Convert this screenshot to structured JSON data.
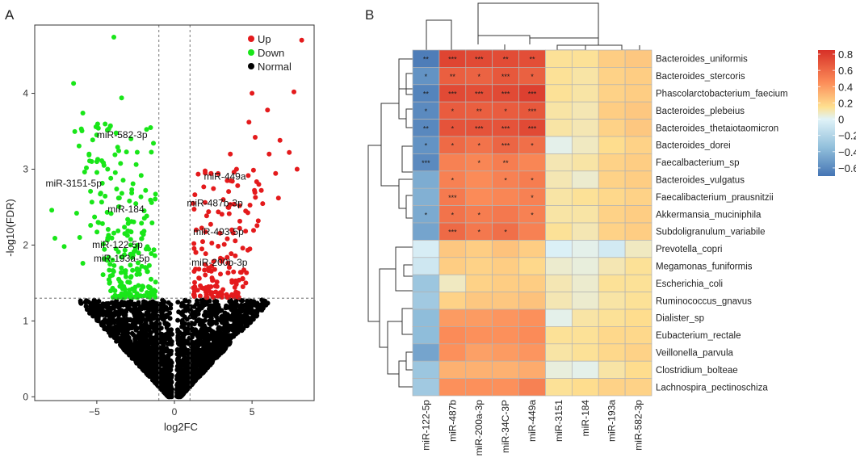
{
  "figure": {
    "panels": [
      "A",
      "B"
    ]
  },
  "chart_data": [
    {
      "type": "scatter",
      "panel": "A",
      "xlabel": "log2FC",
      "ylabel": "-log10(FDR)",
      "xlim": [
        -9,
        9
      ],
      "ylim": [
        -0.05,
        4.9
      ],
      "xticks": [
        -5,
        0,
        5
      ],
      "yticks": [
        0,
        1,
        2,
        3,
        4
      ],
      "thresholds": {
        "log2fc": [
          -1,
          1
        ],
        "neg_log10_fdr": 1.3
      },
      "legend": {
        "position": "top-right",
        "entries": [
          {
            "name": "Up",
            "color": "#e41a1c"
          },
          {
            "name": "Down",
            "color": "#19e619"
          },
          {
            "name": "Normal",
            "color": "#000000"
          }
        ]
      },
      "annotations": [
        {
          "text": "miR-582-3p",
          "x": -5.0,
          "y": 3.41
        },
        {
          "text": "miR-3151-5p",
          "x": -8.3,
          "y": 2.77
        },
        {
          "text": "miR-184",
          "x": -4.3,
          "y": 2.43
        },
        {
          "text": "miR-122-5p",
          "x": -5.3,
          "y": 1.96
        },
        {
          "text": "miR-193a-5p",
          "x": -5.2,
          "y": 1.78
        },
        {
          "text": "miR-449a",
          "x": 1.9,
          "y": 2.86
        },
        {
          "text": "miR-487b-3p",
          "x": 0.8,
          "y": 2.51
        },
        {
          "text": "miR-493-5p",
          "x": 1.2,
          "y": 2.13
        },
        {
          "text": "miR-200b-3p",
          "x": 1.1,
          "y": 1.73
        }
      ],
      "highlight_points": {
        "up": [
          [
            8.2,
            4.7
          ],
          [
            7.7,
            4.02
          ],
          [
            5.0,
            4.0
          ],
          [
            6.0,
            3.78
          ],
          [
            4.8,
            3.62
          ],
          [
            5.2,
            3.42
          ],
          [
            6.1,
            3.2
          ],
          [
            7.4,
            3.22
          ],
          [
            7.9,
            3.0
          ],
          [
            6.8,
            3.38
          ],
          [
            3.6,
            3.2
          ],
          [
            3.4,
            2.85
          ],
          [
            5.6,
            2.72
          ],
          [
            6.7,
            2.62
          ],
          [
            4.2,
            2.52
          ],
          [
            3.7,
            2.2
          ],
          [
            2.2,
            2.44
          ],
          [
            5.4,
            2.32
          ],
          [
            4.4,
            1.96
          ],
          [
            3.1,
            1.81
          ],
          [
            2.4,
            1.72
          ],
          [
            1.6,
            1.56
          ],
          [
            1.3,
            1.42
          ],
          [
            4.6,
            1.5
          ],
          [
            2.8,
            1.33
          ],
          [
            4.0,
            3.0
          ]
        ],
        "down": [
          [
            -3.9,
            4.74
          ],
          [
            -6.5,
            4.13
          ],
          [
            -5.9,
            3.74
          ],
          [
            -3.4,
            3.94
          ],
          [
            -4.9,
            3.54
          ],
          [
            -2.8,
            3.4
          ],
          [
            -7.9,
            2.46
          ],
          [
            -5.4,
            2.26
          ],
          [
            -7.7,
            2.09
          ],
          [
            -7.1,
            1.98
          ],
          [
            -5.9,
            1.76
          ],
          [
            -2.9,
            2.58
          ],
          [
            -4.1,
            2.88
          ],
          [
            -4.3,
            3.0
          ],
          [
            -2.1,
            1.72
          ],
          [
            -6.3,
            2.42
          ],
          [
            -3.2,
            1.42
          ],
          [
            -1.5,
            1.38
          ],
          [
            -5.0,
            3.1
          ],
          [
            -3.6,
            2.62
          ],
          [
            -2.5,
            1.96
          ],
          [
            -4.6,
            1.61
          ],
          [
            -6.1,
            2.1
          ],
          [
            -2.0,
            2.14
          ]
        ]
      }
    },
    {
      "type": "heatmap",
      "panel": "B",
      "columns": [
        "miR-122-5p",
        "miR-487b",
        "miR-200a-3p",
        "miR-34C-3P",
        "miR-449a",
        "miR-3151",
        "miR-184",
        "miR-193a",
        "miR-582-3p"
      ],
      "rows": [
        "Bacteroides_uniformis",
        "Bacteroides_stercoris",
        "Phascolarctobacterium_faecium",
        "Bacteroides_plebeius",
        "Bacteroides_thetaiotaomicron",
        "Bacteroides_dorei",
        "Faecalbacterium_sp",
        "Bacteroides_vulgatus",
        "Faecalibacterium_prausnitzii",
        "Akkermansia_muciniphila",
        "Subdoligranulum_variabile",
        "Prevotella_copri",
        "Megamonas_funiformis",
        "Escherichia_coli",
        "Ruminococcus_gnavus",
        "Dialister_sp",
        "Eubacterium_rectale",
        "Veillonella_parvula",
        "Clostridium_bolteae",
        "Lachnospira_pectinoschiza"
      ],
      "values": [
        [
          -0.66,
          0.76,
          0.74,
          0.73,
          0.72,
          0.14,
          0.14,
          0.22,
          0.24
        ],
        [
          -0.56,
          0.65,
          0.63,
          0.68,
          0.64,
          0.14,
          0.12,
          0.2,
          0.22
        ],
        [
          -0.63,
          0.74,
          0.72,
          0.74,
          0.78,
          0.14,
          0.12,
          0.2,
          0.22
        ],
        [
          -0.6,
          0.66,
          0.65,
          0.66,
          0.68,
          0.12,
          0.1,
          0.22,
          0.24
        ],
        [
          -0.61,
          0.7,
          0.7,
          0.7,
          0.74,
          0.12,
          0.1,
          0.2,
          0.24
        ],
        [
          -0.56,
          0.6,
          0.56,
          0.62,
          0.58,
          0.02,
          0.08,
          0.16,
          0.2
        ],
        [
          -0.6,
          0.5,
          0.48,
          0.52,
          0.48,
          0.1,
          0.12,
          0.2,
          0.22
        ],
        [
          -0.44,
          0.5,
          0.46,
          0.5,
          0.52,
          0.1,
          0.06,
          0.2,
          0.22
        ],
        [
          -0.42,
          0.53,
          0.46,
          0.48,
          0.5,
          0.12,
          0.14,
          0.18,
          0.2
        ],
        [
          -0.45,
          0.56,
          0.52,
          0.54,
          0.5,
          0.12,
          0.12,
          0.2,
          0.22
        ],
        [
          -0.48,
          0.6,
          0.54,
          0.58,
          0.5,
          0.14,
          0.1,
          0.2,
          0.22
        ],
        [
          -0.04,
          0.24,
          0.22,
          0.26,
          0.22,
          -0.02,
          0.02,
          -0.06,
          0.08
        ],
        [
          -0.08,
          0.22,
          0.2,
          0.22,
          0.18,
          0.06,
          0.04,
          0.1,
          0.14
        ],
        [
          -0.3,
          0.08,
          0.2,
          0.22,
          0.22,
          0.1,
          0.06,
          0.14,
          0.14
        ],
        [
          -0.28,
          0.2,
          0.24,
          0.24,
          0.26,
          0.1,
          0.06,
          0.12,
          0.14
        ],
        [
          -0.36,
          0.4,
          0.4,
          0.42,
          0.44,
          0.02,
          0.12,
          0.14,
          0.16
        ],
        [
          -0.36,
          0.46,
          0.44,
          0.44,
          0.46,
          0.14,
          0.14,
          0.18,
          0.18
        ],
        [
          -0.48,
          0.44,
          0.38,
          0.4,
          0.42,
          0.12,
          0.14,
          0.18,
          0.2
        ],
        [
          -0.3,
          0.32,
          0.32,
          0.32,
          0.34,
          0.04,
          0.02,
          0.12,
          0.16
        ],
        [
          -0.28,
          0.44,
          0.44,
          0.44,
          0.5,
          0.14,
          0.16,
          0.2,
          0.2
        ]
      ],
      "significance": [
        [
          "**",
          "***",
          "***",
          "**",
          "**",
          "",
          "",
          "",
          ""
        ],
        [
          "*",
          "**",
          "*",
          "***",
          "*",
          "",
          "",
          "",
          ""
        ],
        [
          "**",
          "***",
          "***",
          "***",
          "***",
          "",
          "",
          "",
          ""
        ],
        [
          "*",
          "*",
          "**",
          "*",
          "***",
          "",
          "",
          "",
          ""
        ],
        [
          "**",
          "*",
          "***",
          "***",
          "***",
          "",
          "",
          "",
          ""
        ],
        [
          "*",
          "*",
          "*",
          "***",
          "*",
          "",
          "",
          "",
          ""
        ],
        [
          "***",
          "",
          "*",
          "**",
          "",
          "",
          "",
          "",
          ""
        ],
        [
          "",
          "*",
          "",
          "*",
          "*",
          "",
          "",
          "",
          ""
        ],
        [
          "",
          "***",
          "",
          "",
          "*",
          "",
          "",
          "",
          ""
        ],
        [
          "*",
          "*",
          "*",
          "",
          "*",
          "",
          "",
          "",
          ""
        ],
        [
          "",
          "***",
          "*",
          "*",
          "",
          "",
          "",
          "",
          ""
        ],
        [
          "",
          "",
          "",
          "",
          "",
          "",
          "",
          "",
          ""
        ],
        [
          "",
          "",
          "",
          "",
          "",
          "",
          "",
          "",
          ""
        ],
        [
          "",
          "",
          "",
          "",
          "",
          "",
          "",
          "",
          ""
        ],
        [
          "",
          "",
          "",
          "",
          "",
          "",
          "",
          "",
          ""
        ],
        [
          "",
          "",
          "",
          "",
          "",
          "",
          "",
          "",
          ""
        ],
        [
          "",
          "",
          "",
          "",
          "",
          "",
          "",
          "",
          ""
        ],
        [
          "",
          "",
          "",
          "",
          "",
          "",
          "",
          "",
          ""
        ],
        [
          "",
          "",
          "",
          "",
          "",
          "",
          "",
          "",
          ""
        ],
        [
          "",
          "",
          "",
          "",
          "",
          "",
          "",
          "",
          ""
        ]
      ],
      "colorbar": {
        "range": [
          -0.7,
          0.85
        ],
        "ticks": [
          0.8,
          0.6,
          0.4,
          0.2,
          0,
          -0.2,
          -0.4,
          -0.6
        ],
        "tick_labels": [
          "0.8",
          "0.6",
          "0.4",
          "0.2",
          "0",
          "−0.2",
          "−0.4",
          "−0.6"
        ],
        "stops": [
          {
            "v": -0.7,
            "color": "#4575b4"
          },
          {
            "v": -0.35,
            "color": "#91bfdb"
          },
          {
            "v": 0,
            "color": "#e0f3f8"
          },
          {
            "v": 0.15,
            "color": "#fee090"
          },
          {
            "v": 0.45,
            "color": "#fc8d59"
          },
          {
            "v": 0.85,
            "color": "#d73027"
          }
        ]
      }
    }
  ]
}
